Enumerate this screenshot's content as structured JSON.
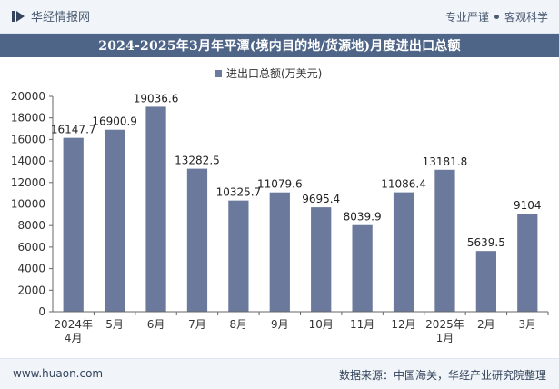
{
  "header": {
    "brand_name": "华经情报网",
    "tagline_left": "专业严谨",
    "tagline_right": "客观科学"
  },
  "title": "2024-2025年3月年平潭(境内目的地/货源地)月度进出口总额",
  "footer": {
    "website": "www.huaon.com",
    "source": "数据来源：中国海关，华经产业研究院整理"
  },
  "colors": {
    "bar": "#6b7a9c",
    "title_bg": "#4f6588",
    "header_bg": "#f1f4f8"
  },
  "chart_data": {
    "type": "bar",
    "title": "2024-2025年3月年平潭(境内目的地/货源地)月度进出口总额",
    "categories": [
      "2024年\n4月",
      "5月",
      "6月",
      "7月",
      "8月",
      "9月",
      "10月",
      "11月",
      "12月",
      "2025年\n1月",
      "2月",
      "3月"
    ],
    "series": [
      {
        "name": "进出口总额(万美元)",
        "values": [
          16147.7,
          16900.9,
          19036.6,
          13282.5,
          10325.7,
          11079.6,
          9695.4,
          8039.9,
          11086.4,
          13181.8,
          5639.5,
          9104
        ],
        "labels": [
          "16147.7",
          "16900.9",
          "19036.6",
          "13282.5",
          "10325.7",
          "11079.6",
          "9695.4",
          "8039.9",
          "11086.4",
          "13181.8",
          "5639.5",
          "9104"
        ]
      }
    ],
    "yticks": [
      "0",
      "2000",
      "4000",
      "6000",
      "8000",
      "10000",
      "12000",
      "14000",
      "16000",
      "18000",
      "20000"
    ],
    "ylim": [
      0,
      20000
    ],
    "legend_position": "top-center",
    "grid": false
  }
}
